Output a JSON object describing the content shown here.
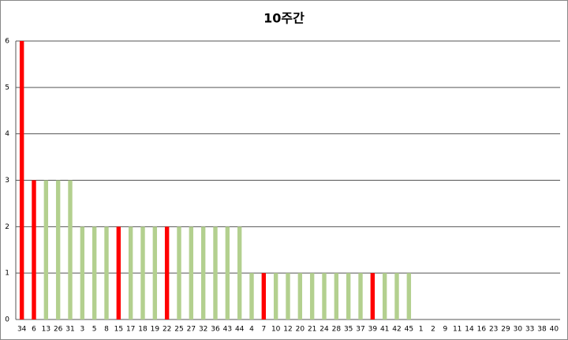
{
  "chart_data": {
    "type": "bar",
    "title": "10주간",
    "categories": [
      "34",
      "6",
      "13",
      "26",
      "31",
      "3",
      "5",
      "8",
      "15",
      "17",
      "18",
      "19",
      "22",
      "25",
      "27",
      "32",
      "36",
      "43",
      "44",
      "4",
      "7",
      "10",
      "12",
      "20",
      "21",
      "24",
      "28",
      "35",
      "37",
      "39",
      "41",
      "42",
      "45",
      "1",
      "2",
      "9",
      "11",
      "14",
      "16",
      "23",
      "29",
      "30",
      "33",
      "38",
      "40"
    ],
    "values": [
      6,
      3,
      3,
      3,
      3,
      2,
      2,
      2,
      2,
      2,
      2,
      2,
      2,
      2,
      2,
      2,
      2,
      2,
      2,
      1,
      1,
      1,
      1,
      1,
      1,
      1,
      1,
      1,
      1,
      1,
      1,
      1,
      1,
      0,
      0,
      0,
      0,
      0,
      0,
      0,
      0,
      0,
      0,
      0,
      0
    ],
    "colors": [
      "#ff0000",
      "#ff0000",
      "#b3d08f",
      "#b3d08f",
      "#b3d08f",
      "#b3d08f",
      "#b3d08f",
      "#b3d08f",
      "#ff0000",
      "#b3d08f",
      "#b3d08f",
      "#b3d08f",
      "#ff0000",
      "#b3d08f",
      "#b3d08f",
      "#b3d08f",
      "#b3d08f",
      "#b3d08f",
      "#b3d08f",
      "#b3d08f",
      "#ff0000",
      "#b3d08f",
      "#b3d08f",
      "#b3d08f",
      "#b3d08f",
      "#b3d08f",
      "#b3d08f",
      "#b3d08f",
      "#b3d08f",
      "#ff0000",
      "#b3d08f",
      "#b3d08f",
      "#b3d08f",
      "#b3d08f",
      "#b3d08f",
      "#b3d08f",
      "#b3d08f",
      "#b3d08f",
      "#b3d08f",
      "#b3d08f",
      "#b3d08f",
      "#b3d08f",
      "#b3d08f",
      "#b3d08f",
      "#b3d08f"
    ],
    "ylim": [
      0,
      6
    ],
    "yticks": [
      0,
      1,
      2,
      3,
      4,
      5,
      6
    ],
    "grid": true
  }
}
